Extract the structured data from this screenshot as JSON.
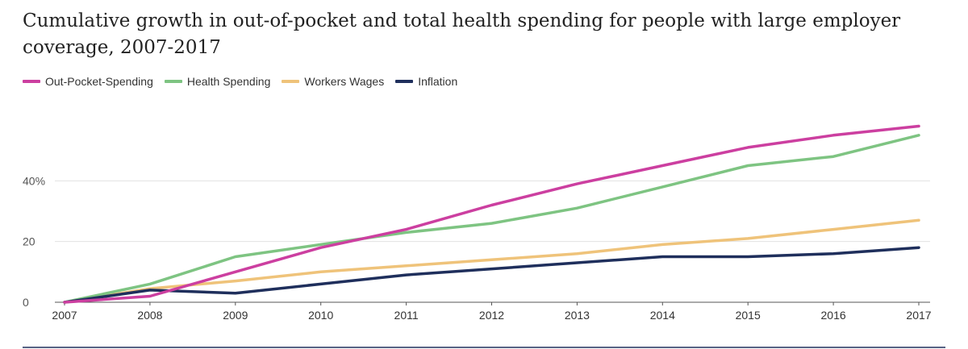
{
  "chart_data": {
    "type": "line",
    "title": "Cumulative growth in out-of-pocket and total health spending for people with large employer coverage, 2007-2017",
    "xlabel": "",
    "ylabel": "",
    "x": [
      "2007",
      "2008",
      "2009",
      "2010",
      "2011",
      "2012",
      "2013",
      "2014",
      "2015",
      "2016",
      "2017"
    ],
    "ylim": [
      0,
      60
    ],
    "yticks": [
      {
        "value": 0,
        "label": "0"
      },
      {
        "value": 20,
        "label": "20"
      },
      {
        "value": 40,
        "label": "40%"
      }
    ],
    "grid": true,
    "legend_position": "top-left",
    "series": [
      {
        "name": "Out-Pocket-Spending",
        "color": "#cc3fa0",
        "values": [
          0,
          2,
          10,
          18,
          24,
          32,
          39,
          45,
          51,
          55,
          58
        ]
      },
      {
        "name": "Health Spending",
        "color": "#7ec482",
        "values": [
          0,
          6,
          15,
          19,
          23,
          26,
          31,
          38,
          45,
          48,
          55
        ]
      },
      {
        "name": "Workers Wages",
        "color": "#efc37a",
        "values": [
          0,
          4.5,
          7,
          10,
          12,
          14,
          16,
          19,
          21,
          24,
          27
        ]
      },
      {
        "name": "Inflation",
        "color": "#1f2f5c",
        "values": [
          0,
          4,
          3,
          6,
          9,
          11,
          13,
          15,
          15,
          16,
          18
        ]
      }
    ]
  }
}
